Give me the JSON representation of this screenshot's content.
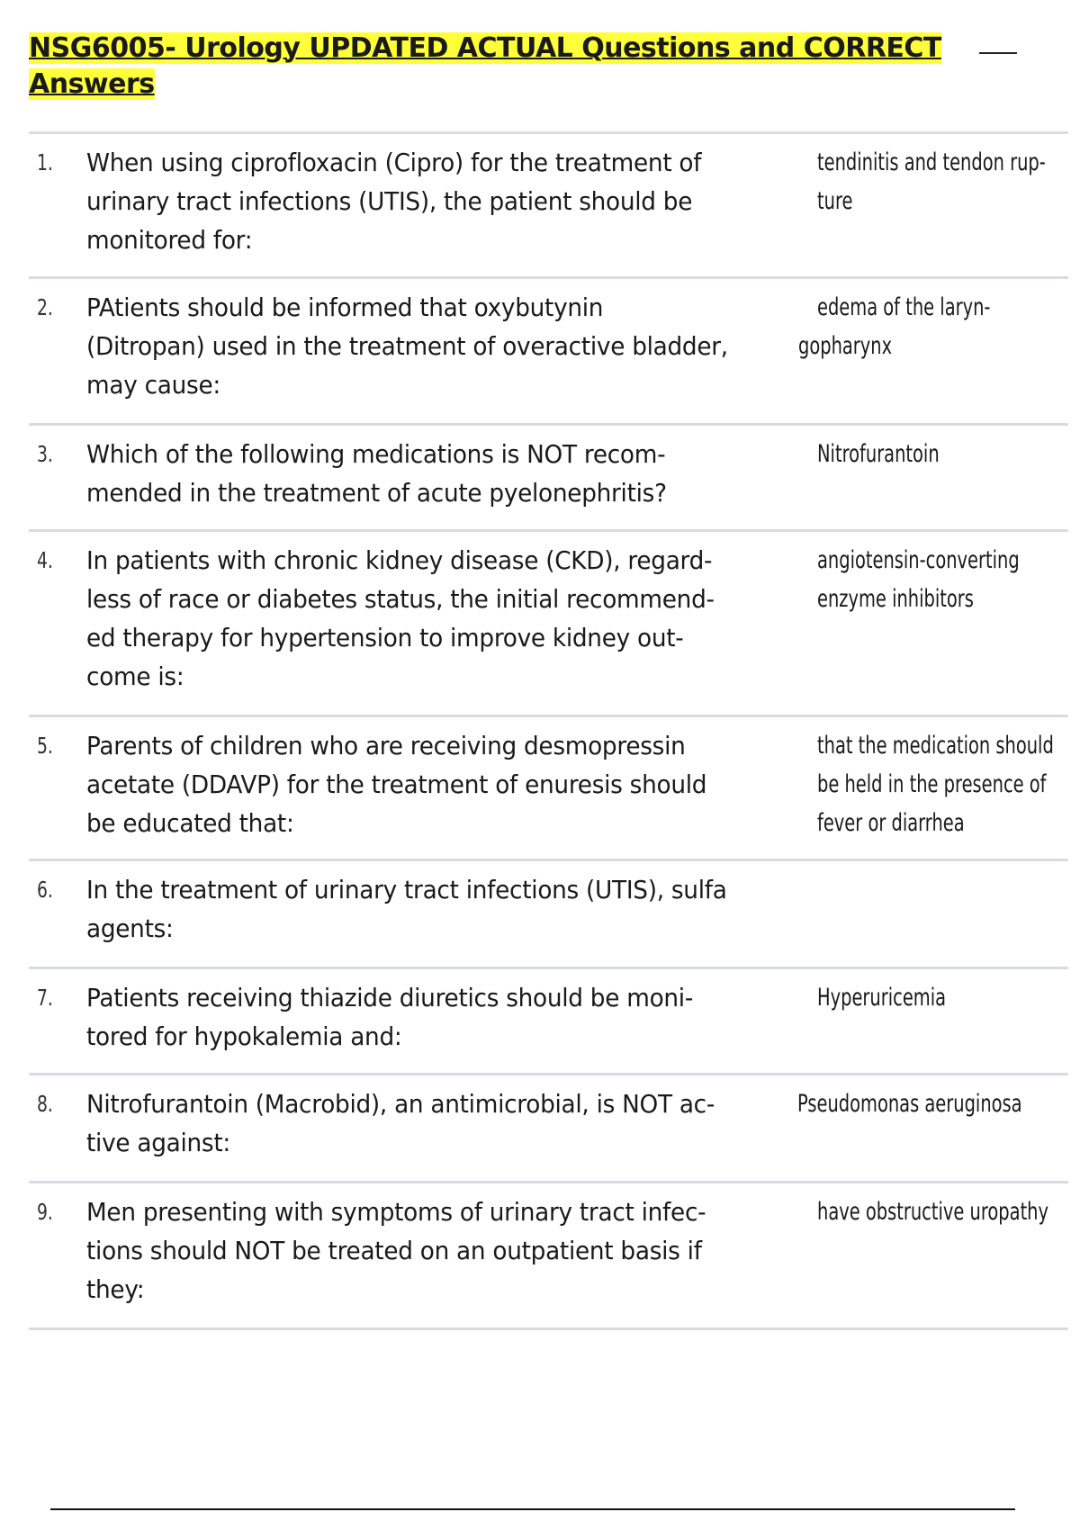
{
  "document": {
    "title_line1": "NSG6005- Urology UPDATED ACTUAL Questions and CORRECT",
    "title_line2": "Answers"
  },
  "items": [
    {
      "number": "1.",
      "question": [
        "When using ciprofloxacin (Cipro) for the treatment of",
        "urinary tract infections (UTIS), the patient should be",
        "monitored for:"
      ],
      "answer": [
        "tendinitis and tendon rup-",
        "ture"
      ]
    },
    {
      "number": "2.",
      "question": [
        "PAtients should be informed that oxybutynin",
        "(Ditropan) used in the treatment of overactive bladder,",
        "may cause:"
      ],
      "answer": [
        "edema of the laryn-",
        "gopharynx"
      ]
    },
    {
      "number": "3.",
      "question": [
        "Which of the following medications is NOT recom-",
        "mended in the treatment of acute pyelonephritis?"
      ],
      "answer": [
        "Nitrofurantoin"
      ]
    },
    {
      "number": "4.",
      "question": [
        "In patients with chronic kidney disease (CKD), regard-",
        "less of race or diabetes status, the initial recommend-",
        "ed therapy for hypertension to improve kidney out-",
        "come is:"
      ],
      "answer": [
        "angiotensin-converting",
        "enzyme inhibitors"
      ]
    },
    {
      "number": "5.",
      "question": [
        "Parents of children who are receiving desmopressin",
        "acetate (DDAVP) for the treatment of enuresis should",
        "be educated that:"
      ],
      "answer": [
        "that the medication should",
        "be held in the presence of",
        "fever or diarrhea"
      ]
    },
    {
      "number": "6.",
      "question": [
        "In the treatment of urinary tract infections (UTIS), sulfa",
        "agents:"
      ],
      "answer": []
    },
    {
      "number": "7.",
      "question": [
        "Patients receiving thiazide diuretics should be moni-",
        "tored for hypokalemia and:"
      ],
      "answer": [
        "Hyperuricemia"
      ]
    },
    {
      "number": "8.",
      "question": [
        "Nitrofurantoin (Macrobid), an antimicrobial, is NOT ac-",
        "tive against:"
      ],
      "answer": [
        "Pseudomonas aeruginosa"
      ]
    },
    {
      "number": "9.",
      "question": [
        "Men presenting with symptoms of urinary tract infec-",
        "tions should NOT be treated on an outpatient basis if",
        "they:"
      ],
      "answer": [
        "have obstructive uropathy"
      ]
    }
  ]
}
